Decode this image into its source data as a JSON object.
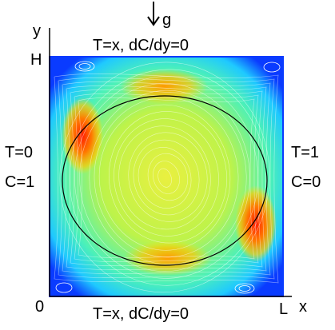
{
  "gravity": {
    "symbol": "g"
  },
  "boundary": {
    "top": "T=x, dC/dy=0",
    "bottom": "T=x, dC/dy=0",
    "left_temp": "T=0",
    "left_conc": "C=1",
    "right_temp": "T=1",
    "right_conc": "C=0"
  },
  "axes": {
    "y_label": "y",
    "x_label": "x",
    "height_label": "H",
    "length_label": "L",
    "origin_label": "0"
  },
  "colors": {
    "field_edge": "#0a3bff",
    "field_mid": "#19d6ff",
    "field_low": "#5cffa0",
    "field_core": "#ddf23a",
    "hot": "#ff2a00",
    "warm": "#ff9b00",
    "ellipse": "#000000"
  },
  "streamline_field_note": ""
}
